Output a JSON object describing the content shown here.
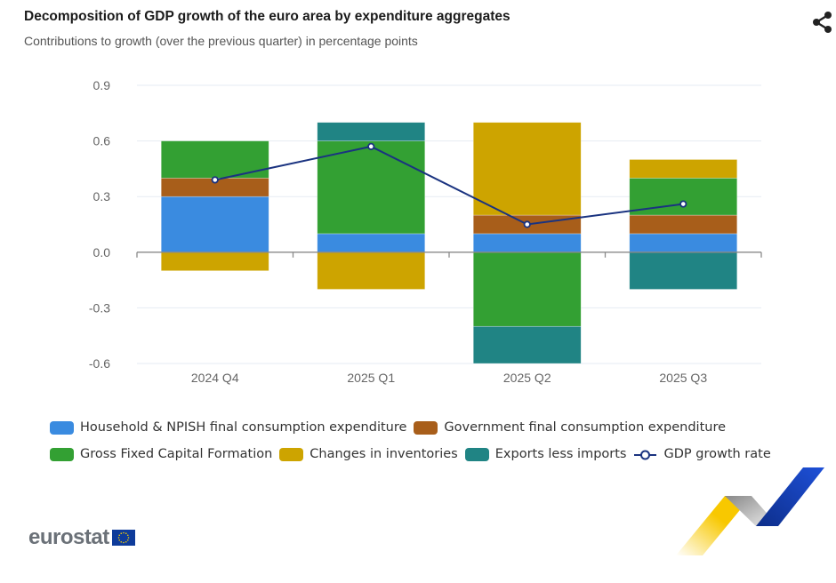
{
  "header": {
    "title": "Decomposition of GDP growth of the euro area by expenditure aggregates",
    "subtitle": "Contributions to growth (over the previous quarter) in percentage points",
    "share_icon": "share-icon"
  },
  "chart_data": {
    "type": "bar",
    "stacked": true,
    "title": "Decomposition of GDP growth of the euro area by expenditure aggregates",
    "subtitle": "Contributions to growth (over the previous quarter) in percentage points",
    "xlabel": "",
    "ylabel": "",
    "categories": [
      "2024 Q4",
      "2025 Q1",
      "2025 Q2",
      "2025 Q3"
    ],
    "ylim": [
      -0.6,
      0.9
    ],
    "yticks": [
      -0.6,
      -0.3,
      0.0,
      0.3,
      0.6,
      0.9
    ],
    "ytick_labels": [
      "-0.6",
      "-0.3",
      "0.0",
      "0.3",
      "0.6",
      "0.9"
    ],
    "grid": true,
    "legend_position": "bottom",
    "series": [
      {
        "name": "Household & NPISH final consumption expenditure",
        "color": "#3a8be0",
        "type": "bar",
        "values": [
          0.3,
          0.1,
          0.1,
          0.1
        ]
      },
      {
        "name": "Government final consumption expenditure",
        "color": "#a85e1a",
        "type": "bar",
        "values": [
          0.1,
          0.0,
          0.1,
          0.1
        ]
      },
      {
        "name": "Gross Fixed Capital Formation",
        "color": "#33a033",
        "type": "bar",
        "values": [
          0.2,
          0.5,
          -0.4,
          0.2
        ]
      },
      {
        "name": "Changes in inventories",
        "color": "#cda400",
        "type": "bar",
        "values": [
          -0.1,
          -0.2,
          0.5,
          0.1
        ]
      },
      {
        "name": "Exports less imports",
        "color": "#208484",
        "type": "bar",
        "values": [
          0.0,
          0.1,
          -0.2,
          -0.2
        ]
      },
      {
        "name": "GDP growth rate",
        "color": "#1a3380",
        "type": "line",
        "values": [
          0.39,
          0.57,
          0.15,
          0.26
        ]
      }
    ]
  },
  "legend": {
    "rows": [
      [
        {
          "label": "Household & NPISH final consumption expenditure",
          "color": "#3a8be0",
          "kind": "bar"
        },
        {
          "label": "Government final consumption expenditure",
          "color": "#a85e1a",
          "kind": "bar"
        }
      ],
      [
        {
          "label": "Gross Fixed Capital Formation",
          "color": "#33a033",
          "kind": "bar"
        },
        {
          "label": "Changes in inventories",
          "color": "#cda400",
          "kind": "bar"
        },
        {
          "label": "Exports less imports",
          "color": "#208484",
          "kind": "bar"
        },
        {
          "label": "GDP growth rate",
          "color": "#1a3380",
          "kind": "line"
        }
      ]
    ]
  },
  "footer": {
    "logo_text": "eurostat"
  }
}
